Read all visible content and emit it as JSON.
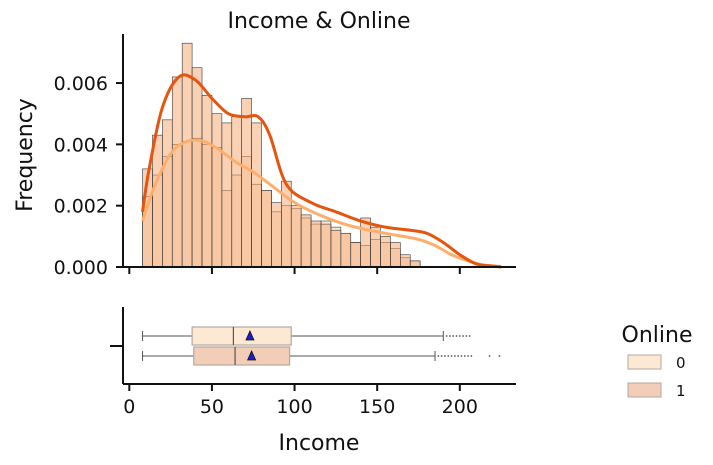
{
  "chart_data": {
    "type": "histogram",
    "title": "Income & Online",
    "xlabel": "Income",
    "ylabel": "Frequency",
    "xlim": [
      -2,
      234
    ],
    "ylim": [
      0,
      0.0076
    ],
    "x_ticks": [
      0,
      50,
      100,
      150,
      200
    ],
    "y_ticks": [
      0.0,
      0.002,
      0.004,
      0.006
    ],
    "y_tick_labels": [
      "0.000",
      "0.002",
      "0.004",
      "0.006"
    ],
    "bin_start": 8,
    "bin_width": 6,
    "series": [
      {
        "name": "0",
        "color": "#fde8d4",
        "values": [
          0.0023,
          0.003,
          0.0036,
          0.004,
          0.0041,
          0.0042,
          0.004,
          0.0039,
          0.0025,
          0.003,
          0.0036,
          0.0027,
          0.0025,
          0.0018,
          0.002,
          0.0019,
          0.0016,
          0.0014,
          0.0015,
          0.0013,
          0.0011,
          0.0008,
          0.0007,
          0.0009,
          0.0008,
          0.0006,
          0.0003,
          0.0002
        ],
        "kde_x": [
          8,
          15,
          25,
          35,
          45,
          55,
          65,
          75,
          85,
          100,
          115,
          130,
          145,
          160,
          175,
          185,
          195,
          205,
          215,
          225
        ],
        "kde_y": [
          0.0015,
          0.0026,
          0.0037,
          0.0041,
          0.0041,
          0.0038,
          0.0034,
          0.0031,
          0.0027,
          0.0021,
          0.0017,
          0.0014,
          0.0012,
          0.00105,
          0.0009,
          0.0007,
          0.0004,
          0.0002,
          6e-05,
          2e-05
        ]
      },
      {
        "name": "1",
        "color": "#f4a46c",
        "values": [
          0.0032,
          0.0043,
          0.0048,
          0.0062,
          0.0073,
          0.0065,
          0.0056,
          0.005,
          0.0047,
          0.0049,
          0.0055,
          0.0047,
          0.0025,
          0.0021,
          0.0028,
          0.002,
          0.0017,
          0.0015,
          0.0014,
          0.0012,
          0.0011,
          0.0008,
          0.0016,
          0.0013,
          0.001,
          0.0008,
          0.0004,
          0.0002
        ],
        "kde_x": [
          8,
          12,
          20,
          30,
          40,
          50,
          60,
          70,
          78,
          85,
          95,
          110,
          125,
          140,
          155,
          170,
          180,
          190,
          200,
          210,
          220,
          225
        ],
        "kde_y": [
          0.0018,
          0.0032,
          0.0052,
          0.0062,
          0.0061,
          0.0055,
          0.005,
          0.0049,
          0.0049,
          0.0043,
          0.0027,
          0.0021,
          0.0018,
          0.0015,
          0.0013,
          0.0012,
          0.0011,
          0.0008,
          0.0004,
          0.0001,
          3e-05,
          0.0
        ]
      }
    ],
    "kde_colors": {
      "0": "#fdae6b",
      "1": "#e6550d"
    },
    "boxplots": [
      {
        "name": "0",
        "whisker_low": 8,
        "q1": 38,
        "median": 63,
        "q3": 98,
        "whisker_high": 190,
        "mean": 73,
        "outliers": [
          192,
          194,
          196,
          198,
          200,
          202,
          204,
          206
        ],
        "fill": "#fde8d4"
      },
      {
        "name": "1",
        "whisker_low": 8,
        "q1": 39,
        "median": 64,
        "q3": 97,
        "whisker_high": 185,
        "mean": 74,
        "outliers": [
          187,
          189,
          191,
          193,
          195,
          197,
          199,
          201,
          203,
          205,
          207,
          218,
          224
        ],
        "fill": "#f2cdb8"
      }
    ],
    "legend": {
      "title": "Online",
      "position": "right",
      "entries": [
        {
          "label": "0",
          "color": "#fde8d4"
        },
        {
          "label": "1",
          "color": "#f2cdb8"
        }
      ]
    },
    "grid": false
  }
}
